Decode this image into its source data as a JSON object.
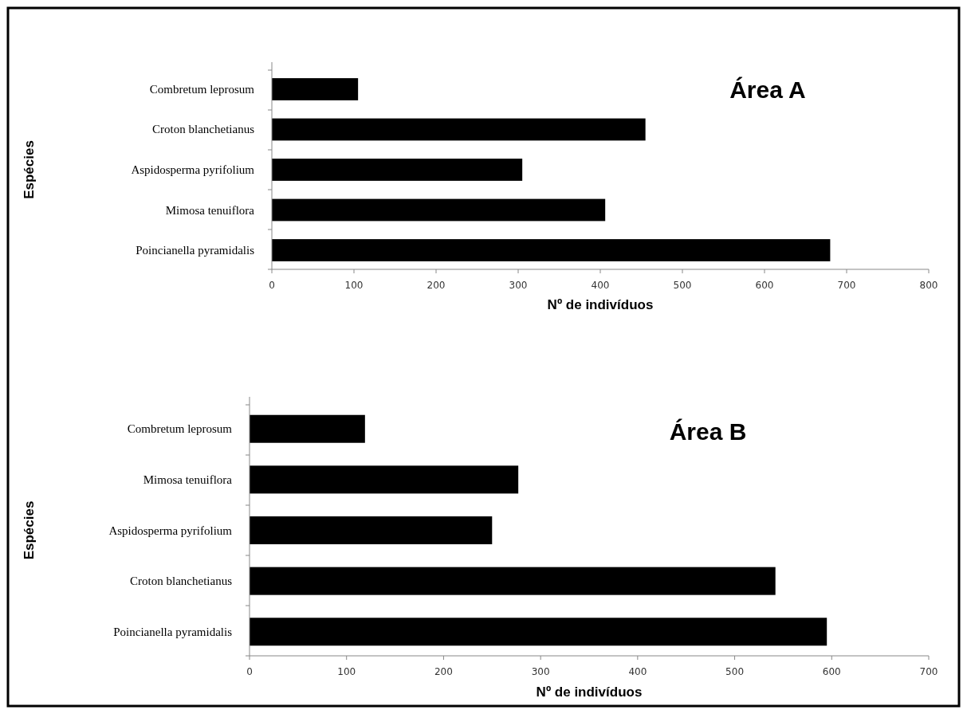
{
  "chart_data": [
    {
      "type": "bar",
      "orientation": "horizontal",
      "title": "Área A",
      "xlabel": "Nº de indivíduos",
      "ylabel": "Espécies",
      "categories": [
        "Combretum leprosum",
        "Croton blanchetianus",
        "Aspidosperma pyrifolium",
        "Mimosa tenuiflora",
        "Poincianella pyramidalis"
      ],
      "values": [
        105,
        455,
        305,
        406,
        680
      ],
      "color": "#000000",
      "xlim": [
        0,
        800
      ],
      "xticks": [
        0,
        100,
        200,
        300,
        400,
        500,
        600,
        700,
        800
      ],
      "grid": false
    },
    {
      "type": "bar",
      "orientation": "horizontal",
      "title": "Área B",
      "xlabel": "Nº de indivíduos",
      "ylabel": "Espécies",
      "categories": [
        "Combretum leprosum",
        "Mimosa tenuiflora",
        "Aspidosperma pyrifolium",
        "Croton blanchetianus",
        "Poincianella pyramidalis"
      ],
      "values": [
        119,
        277,
        250,
        542,
        595
      ],
      "color": "#000000",
      "xlim": [
        0,
        700
      ],
      "xticks": [
        0,
        100,
        200,
        300,
        400,
        500,
        600,
        700
      ],
      "grid": false
    }
  ]
}
